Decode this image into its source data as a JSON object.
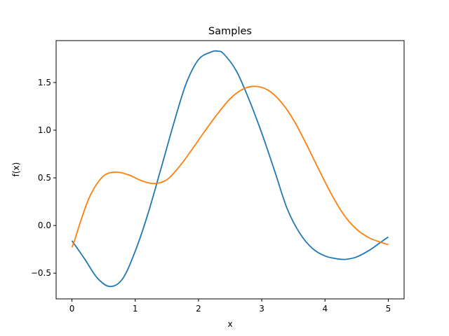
{
  "chart_data": {
    "type": "line",
    "title": "Samples",
    "xlabel": "x",
    "ylabel": "f(x)",
    "xlim": [
      -0.25,
      5.25
    ],
    "ylim": [
      -0.77,
      1.94
    ],
    "xticks": [
      0,
      1,
      2,
      3,
      4,
      5
    ],
    "xtick_labels": [
      "0",
      "1",
      "2",
      "3",
      "4",
      "5"
    ],
    "yticks": [
      -0.5,
      0.0,
      0.5,
      1.0,
      1.5
    ],
    "ytick_labels": [
      "−0.5",
      "0.0",
      "0.5",
      "1.0",
      "1.5"
    ],
    "grid": false,
    "legend": "none",
    "series": [
      {
        "color": "#1f77b4",
        "x": [
          0,
          0.2,
          0.4,
          0.6,
          0.8,
          1.0,
          1.2,
          1.4,
          1.6,
          1.8,
          2.0,
          2.2,
          2.3,
          2.4,
          2.6,
          2.8,
          3.0,
          3.2,
          3.4,
          3.6,
          3.8,
          4.0,
          4.2,
          4.33,
          4.5,
          4.7,
          4.85,
          5.0
        ],
        "y": [
          -0.16,
          -0.35,
          -0.55,
          -0.64,
          -0.56,
          -0.27,
          0.12,
          0.58,
          1.05,
          1.48,
          1.74,
          1.82,
          1.83,
          1.8,
          1.62,
          1.32,
          0.97,
          0.58,
          0.18,
          -0.08,
          -0.24,
          -0.32,
          -0.35,
          -0.355,
          -0.33,
          -0.26,
          -0.19,
          -0.12
        ]
      },
      {
        "color": "#ff7f0e",
        "x": [
          0,
          0.05,
          0.15,
          0.3,
          0.5,
          0.7,
          0.9,
          1.1,
          1.3,
          1.5,
          1.7,
          1.9,
          2.1,
          2.3,
          2.5,
          2.7,
          2.9,
          3.1,
          3.3,
          3.5,
          3.7,
          3.9,
          4.1,
          4.3,
          4.5,
          4.7,
          4.9,
          5.0
        ],
        "y": [
          -0.23,
          -0.14,
          0.07,
          0.33,
          0.52,
          0.56,
          0.53,
          0.47,
          0.44,
          0.48,
          0.62,
          0.8,
          0.99,
          1.17,
          1.33,
          1.43,
          1.46,
          1.42,
          1.3,
          1.11,
          0.86,
          0.59,
          0.33,
          0.11,
          -0.04,
          -0.13,
          -0.18,
          -0.2
        ]
      }
    ]
  }
}
